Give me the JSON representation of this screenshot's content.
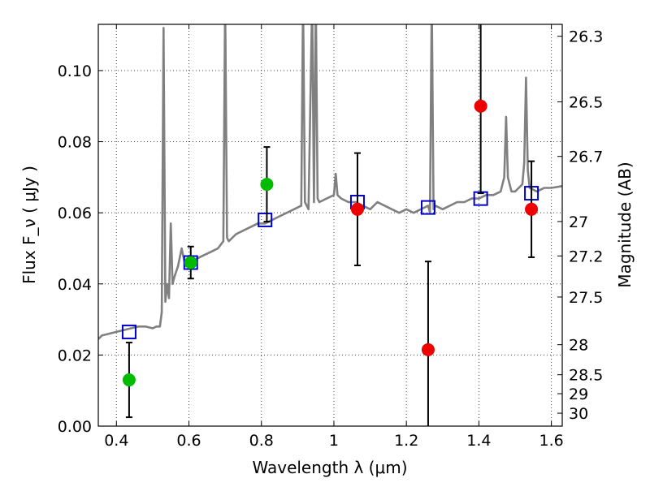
{
  "chart_data": {
    "type": "scatter",
    "title": "",
    "xlabel": "Wavelength  λ (μm)",
    "ylabel": "Flux  F_ν  ( μJy )",
    "ylabel_right": "Magnitude (AB)",
    "xlim": [
      0.35,
      1.63
    ],
    "ylim": [
      0.0,
      0.113
    ],
    "grid": true,
    "x_ticks": [
      0.4,
      0.6,
      0.8,
      1.0,
      1.2,
      1.4,
      1.6
    ],
    "x_tick_labels": [
      "0.4",
      "0.6",
      "0.8",
      "1",
      "1.2",
      "1.4",
      "1.6"
    ],
    "y_ticks": [
      0.0,
      0.02,
      0.04,
      0.06,
      0.08,
      0.1
    ],
    "y_tick_labels": [
      "0.00",
      "0.02",
      "0.04",
      "0.06",
      "0.08",
      "0.10"
    ],
    "right_ticks": [
      {
        "mag": 26.3,
        "label": "26.3"
      },
      {
        "mag": 26.5,
        "label": "26.5"
      },
      {
        "mag": 26.7,
        "label": "26.7"
      },
      {
        "mag": 27.0,
        "label": "27"
      },
      {
        "mag": 27.2,
        "label": "27.2"
      },
      {
        "mag": 27.5,
        "label": "27.5"
      },
      {
        "mag": 28.0,
        "label": "28"
      },
      {
        "mag": 28.5,
        "label": "28.5"
      },
      {
        "mag": 29.0,
        "label": "29"
      },
      {
        "mag": 30.0,
        "label": "30"
      }
    ],
    "series": [
      {
        "kind": "line",
        "color": "#808080",
        "x": [
          0.35,
          0.36,
          0.38,
          0.4,
          0.42,
          0.44,
          0.46,
          0.48,
          0.5,
          0.51,
          0.52,
          0.525,
          0.53,
          0.535,
          0.54,
          0.545,
          0.55,
          0.555,
          0.56,
          0.57,
          0.58,
          0.59,
          0.6,
          0.62,
          0.64,
          0.66,
          0.68,
          0.695,
          0.7,
          0.705,
          0.71,
          0.73,
          0.75,
          0.77,
          0.79,
          0.81,
          0.83,
          0.85,
          0.87,
          0.89,
          0.91,
          0.915,
          0.92,
          0.925,
          0.93,
          0.94,
          0.945,
          0.95,
          0.955,
          0.96,
          0.98,
          1.0,
          1.005,
          1.01,
          1.02,
          1.04,
          1.06,
          1.08,
          1.1,
          1.12,
          1.14,
          1.16,
          1.18,
          1.2,
          1.22,
          1.24,
          1.26,
          1.265,
          1.27,
          1.275,
          1.28,
          1.3,
          1.32,
          1.34,
          1.36,
          1.38,
          1.4,
          1.42,
          1.44,
          1.46,
          1.47,
          1.475,
          1.48,
          1.49,
          1.5,
          1.51,
          1.52,
          1.525,
          1.53,
          1.535,
          1.54,
          1.56,
          1.58,
          1.6,
          1.63
        ],
        "y": [
          0.0245,
          0.0255,
          0.026,
          0.0265,
          0.027,
          0.0275,
          0.028,
          0.028,
          0.0275,
          0.028,
          0.028,
          0.032,
          0.112,
          0.035,
          0.04,
          0.036,
          0.057,
          0.04,
          0.042,
          0.045,
          0.05,
          0.045,
          0.046,
          0.047,
          0.048,
          0.049,
          0.05,
          0.052,
          0.12,
          0.053,
          0.052,
          0.054,
          0.055,
          0.056,
          0.057,
          0.057,
          0.058,
          0.059,
          0.06,
          0.061,
          0.062,
          0.12,
          0.063,
          0.062,
          0.061,
          0.12,
          0.063,
          0.12,
          0.064,
          0.063,
          0.064,
          0.065,
          0.071,
          0.065,
          0.064,
          0.063,
          0.063,
          0.062,
          0.061,
          0.063,
          0.062,
          0.061,
          0.06,
          0.061,
          0.06,
          0.061,
          0.062,
          0.06,
          0.12,
          0.061,
          0.062,
          0.061,
          0.062,
          0.063,
          0.063,
          0.064,
          0.064,
          0.065,
          0.065,
          0.066,
          0.07,
          0.087,
          0.07,
          0.066,
          0.066,
          0.067,
          0.068,
          0.074,
          0.098,
          0.072,
          0.067,
          0.066,
          0.067,
          0.067,
          0.0675
        ]
      },
      {
        "kind": "square",
        "color": "#0000cc",
        "x": [
          0.435,
          0.605,
          0.81,
          1.065,
          1.26,
          1.405,
          1.545
        ],
        "y": [
          0.0265,
          0.046,
          0.058,
          0.063,
          0.0615,
          0.064,
          0.0655
        ]
      },
      {
        "kind": "circle",
        "color": "#00bb00",
        "x": [
          0.435,
          0.605,
          0.815
        ],
        "y": [
          0.013,
          0.046,
          0.068
        ],
        "err": [
          0.0105,
          0.0045,
          0.0105
        ]
      },
      {
        "kind": "circle",
        "color": "#ee0000",
        "x": [
          1.065,
          1.26,
          1.405,
          1.545
        ],
        "y": [
          0.061,
          0.0215,
          0.09,
          0.061
        ],
        "err": [
          0.0158,
          0.0248,
          0.0245,
          0.0135
        ]
      }
    ]
  }
}
